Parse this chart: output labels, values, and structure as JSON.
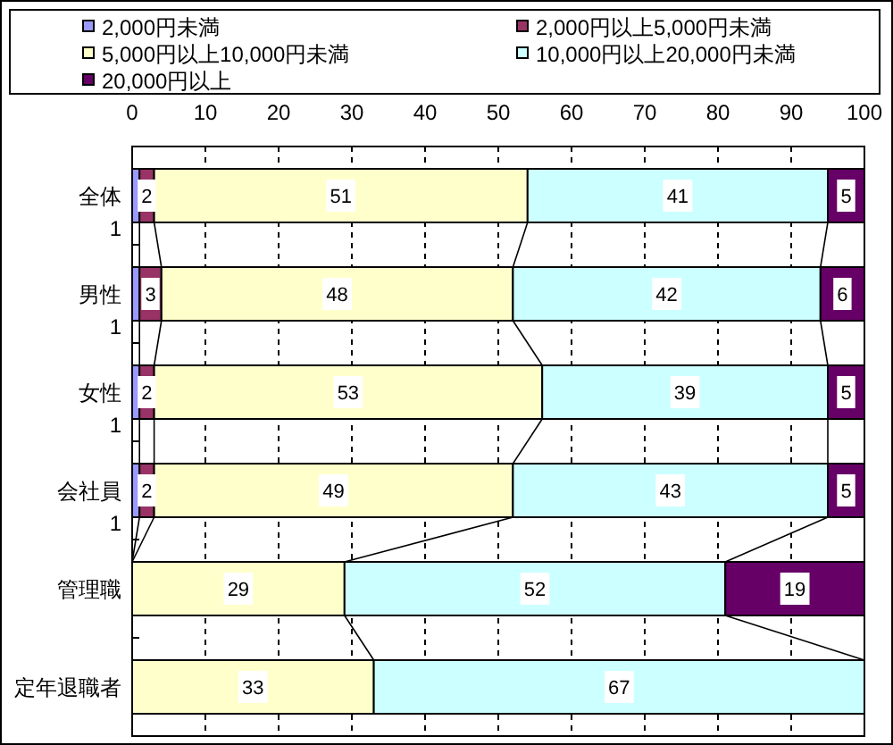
{
  "chart_data": {
    "type": "bar",
    "orientation": "horizontal",
    "stacked": true,
    "categories": [
      "全体\n1",
      "男性\n1",
      "女性\n1",
      "会社員\n1",
      "管理職",
      "定年退職者"
    ],
    "series": [
      {
        "name": "2,000円未満",
        "color": "#9999ff",
        "values": [
          1,
          1,
          1,
          1,
          0,
          0
        ]
      },
      {
        "name": "2,000円以上5,000円未満",
        "color": "#993366",
        "values": [
          2,
          3,
          2,
          2,
          0,
          0
        ],
        "value_labels": [
          "2",
          "3",
          "2",
          "2",
          null,
          null
        ]
      },
      {
        "name": "5,000円以上10,000円未満",
        "color": "#ffffcc",
        "values": [
          51,
          48,
          53,
          49,
          29,
          33
        ],
        "value_labels": [
          "51",
          "48",
          "53",
          "49",
          "29",
          "33"
        ]
      },
      {
        "name": "10,000円以上20,000円未満",
        "color": "#ccffff",
        "values": [
          41,
          42,
          39,
          43,
          52,
          67
        ],
        "value_labels": [
          "41",
          "42",
          "39",
          "43",
          "52",
          "67"
        ]
      },
      {
        "name": "20,000円以上",
        "color": "#660066",
        "values": [
          5,
          6,
          5,
          5,
          19,
          0
        ],
        "value_labels": [
          "5",
          "6",
          "5",
          "5",
          "19",
          null
        ]
      }
    ],
    "xlim": [
      0,
      100
    ],
    "xticks": [
      0,
      10,
      20,
      30,
      40,
      50,
      60,
      70,
      80,
      90,
      100
    ],
    "grid": "x",
    "legend": "top"
  }
}
